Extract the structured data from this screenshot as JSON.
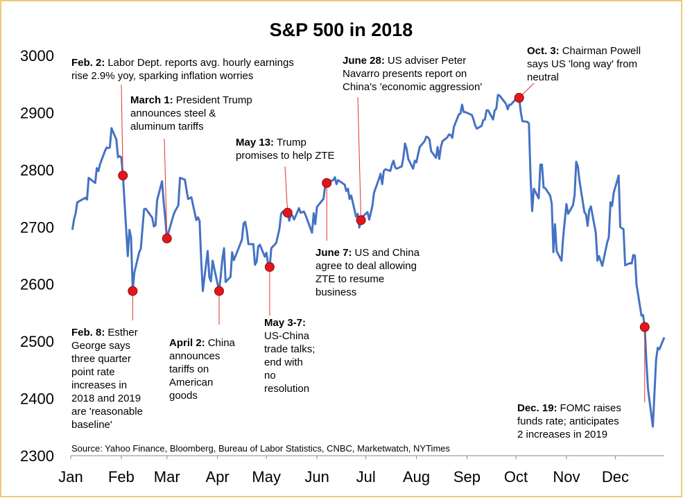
{
  "chart_data": {
    "type": "line",
    "title": "S&P 500 in 2018",
    "source": "Source: Yahoo Finance, Bloomberg, Bureau of Labor Statistics, CNBC, Marketwatch, NYTimes",
    "color": "#4472c4",
    "xlim": [
      1,
      365
    ],
    "xticks": [
      {
        "value": 1,
        "label": "Jan"
      },
      {
        "value": 32,
        "label": "Feb"
      },
      {
        "value": 60,
        "label": "Mar"
      },
      {
        "value": 91,
        "label": "Apr"
      },
      {
        "value": 121,
        "label": "May"
      },
      {
        "value": 152,
        "label": "Jun"
      },
      {
        "value": 182,
        "label": "Jul"
      },
      {
        "value": 213,
        "label": "Aug"
      },
      {
        "value": 244,
        "label": "Sep"
      },
      {
        "value": 274,
        "label": "Oct"
      },
      {
        "value": 305,
        "label": "Nov"
      },
      {
        "value": 335,
        "label": "Dec"
      }
    ],
    "ylim": [
      2300,
      3000
    ],
    "yticks": [
      2300,
      2400,
      2500,
      2600,
      2700,
      2800,
      2900,
      3000
    ],
    "x": [
      2,
      3,
      4,
      5,
      8,
      10,
      11,
      12,
      16,
      17,
      18,
      19,
      22,
      23,
      24,
      25,
      26,
      29,
      30,
      31,
      32,
      33,
      36,
      37,
      38,
      39,
      40,
      43,
      44,
      45,
      46,
      47,
      51,
      52,
      53,
      54,
      57,
      58,
      59,
      60,
      61,
      64,
      65,
      67,
      68,
      71,
      72,
      73,
      75,
      78,
      79,
      80,
      81,
      82,
      85,
      86,
      87,
      88,
      92,
      93,
      94,
      95,
      96,
      99,
      100,
      101,
      103,
      106,
      107,
      108,
      109,
      110,
      113,
      114,
      115,
      116,
      117,
      120,
      121,
      122,
      123,
      124,
      127,
      129,
      130,
      131,
      134,
      135,
      136,
      137,
      138,
      141,
      142,
      144,
      145,
      149,
      150,
      151,
      152,
      155,
      156,
      157,
      158,
      159,
      162,
      163,
      164,
      165,
      166,
      169,
      170,
      171,
      172,
      173,
      176,
      177,
      178,
      179,
      180,
      183,
      184,
      186,
      187,
      190,
      191,
      192,
      193,
      194,
      197,
      198,
      199,
      200,
      201,
      204,
      205,
      206,
      207,
      208,
      211,
      212,
      213,
      214,
      215,
      218,
      219,
      220,
      221,
      222,
      225,
      226,
      227,
      228,
      229,
      232,
      233,
      234,
      235,
      236,
      239,
      240,
      241,
      242,
      243,
      247,
      248,
      249,
      250,
      253,
      254,
      255,
      256,
      257,
      260,
      261,
      262,
      263,
      264,
      267,
      268,
      269,
      270,
      271,
      274,
      275,
      276,
      277,
      278,
      281,
      282,
      283,
      284,
      285,
      288,
      289,
      290,
      291,
      292,
      295,
      296,
      297,
      298,
      299,
      302,
      303,
      304,
      305,
      306,
      309,
      310,
      311,
      312,
      313,
      316,
      317,
      318,
      319,
      320,
      323,
      324,
      325,
      327,
      330,
      331,
      332,
      333,
      334,
      337,
      338,
      340,
      341,
      344,
      345,
      346,
      347,
      348,
      351,
      352,
      353,
      354,
      355,
      358,
      360,
      361,
      362,
      365
    ],
    "values": [
      2695,
      2713,
      2724,
      2743,
      2748,
      2751,
      2748,
      2786,
      2777,
      2803,
      2798,
      2810,
      2833,
      2839,
      2838,
      2839,
      2873,
      2853,
      2822,
      2824,
      2822,
      2790,
      2649,
      2695,
      2682,
      2588,
      2620,
      2656,
      2662,
      2698,
      2731,
      2732,
      2716,
      2701,
      2703,
      2747,
      2780,
      2744,
      2714,
      2680,
      2691,
      2721,
      2728,
      2738,
      2786,
      2783,
      2765,
      2749,
      2752,
      2712,
      2717,
      2711,
      2644,
      2588,
      2658,
      2612,
      2605,
      2641,
      2588,
      2615,
      2644,
      2663,
      2604,
      2613,
      2656,
      2642,
      2656,
      2678,
      2706,
      2709,
      2693,
      2670,
      2670,
      2634,
      2639,
      2666,
      2669,
      2648,
      2655,
      2636,
      2630,
      2663,
      2672,
      2697,
      2723,
      2727,
      2725,
      2711,
      2722,
      2720,
      2713,
      2733,
      2725,
      2727,
      2721,
      2690,
      2724,
      2705,
      2735,
      2746,
      2749,
      2772,
      2777,
      2779,
      2782,
      2787,
      2775,
      2782,
      2780,
      2774,
      2763,
      2767,
      2749,
      2755,
      2718,
      2723,
      2699,
      2712,
      2718,
      2726,
      2713,
      2737,
      2760,
      2784,
      2793,
      2775,
      2798,
      2801,
      2798,
      2809,
      2816,
      2804,
      2802,
      2806,
      2821,
      2846,
      2837,
      2819,
      2802,
      2816,
      2813,
      2827,
      2840,
      2850,
      2858,
      2857,
      2853,
      2833,
      2821,
      2840,
      2819,
      2840,
      2850,
      2857,
      2862,
      2861,
      2856,
      2875,
      2897,
      2898,
      2914,
      2901,
      2901,
      2896,
      2888,
      2878,
      2872,
      2877,
      2887,
      2888,
      2904,
      2904,
      2888,
      2904,
      2907,
      2931,
      2930,
      2919,
      2915,
      2906,
      2914,
      2914,
      2924,
      2923,
      2926,
      2901,
      2885,
      2884,
      2881,
      2786,
      2728,
      2767,
      2750,
      2809,
      2809,
      2769,
      2768,
      2755,
      2741,
      2656,
      2705,
      2658,
      2641,
      2682,
      2711,
      2740,
      2723,
      2738,
      2756,
      2814,
      2806,
      2781,
      2726,
      2722,
      2702,
      2730,
      2736,
      2690,
      2641,
      2649,
      2632,
      2673,
      2682,
      2743,
      2737,
      2760,
      2790,
      2700,
      2696,
      2633,
      2637,
      2636,
      2651,
      2650,
      2599,
      2545,
      2546,
      2525,
      2467,
      2417,
      2351,
      2468,
      2489,
      2486,
      2507
    ],
    "annotations": [
      {
        "date": "Feb. 2:",
        "lines": [
          "Labor Dept. reports avg. hourly earnings",
          "rise 2.9% yoy, sparking inflation worries"
        ],
        "x": 33,
        "y": 2790
      },
      {
        "date": "March 1:",
        "lines": [
          "President Trump",
          "announces steel &",
          "aluminum tariffs"
        ],
        "x": 60,
        "y": 2680
      },
      {
        "date": "May 13:",
        "lines": [
          "Trump",
          "promises to help ZTE"
        ],
        "x": 134,
        "y": 2725
      },
      {
        "date": "June 28:",
        "lines": [
          "US adviser Peter",
          "Navarro presents report on",
          "China's 'economic aggression'"
        ],
        "x": 179,
        "y": 2712
      },
      {
        "date": "Oct. 3:",
        "lines": [
          "Chairman Powell",
          "says US 'long way' from",
          "neutral"
        ],
        "x": 276,
        "y": 2926
      },
      {
        "date": "Feb. 8:",
        "lines": [
          "Esther",
          "George says",
          "three quarter",
          "point rate",
          "increases in",
          "2018 and 2019",
          "are 'reasonable",
          "baseline'"
        ],
        "x": 39,
        "y": 2588
      },
      {
        "date": "April 2:",
        "lines": [
          "China",
          "announces",
          "tariffs on",
          "American",
          "goods"
        ],
        "x": 92,
        "y": 2588
      },
      {
        "date": "May 3-7:",
        "lines": [
          "US-China",
          "trade talks;",
          "end with",
          "no",
          "resolution"
        ],
        "x": 123,
        "y": 2630
      },
      {
        "date": "June 7:",
        "lines": [
          "US and China",
          "agree to deal allowing",
          "ZTE to resume",
          "business"
        ],
        "x": 158,
        "y": 2777
      },
      {
        "date": "Dec. 19:",
        "lines": [
          "FOMC raises",
          "funds rate; anticipates",
          "2 increases in 2019"
        ],
        "x": 353,
        "y": 2525
      }
    ]
  }
}
